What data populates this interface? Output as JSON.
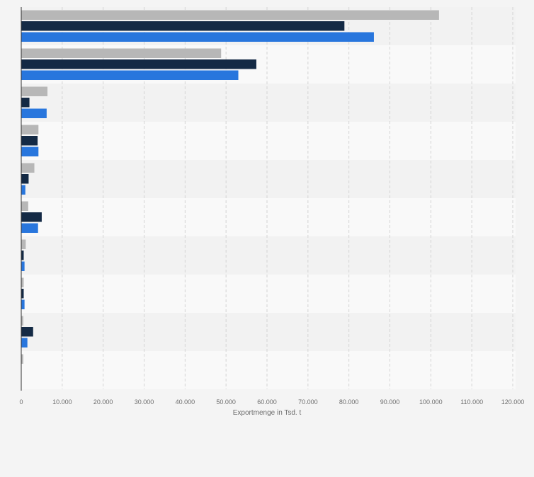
{
  "chart_data": {
    "type": "bar",
    "orientation": "horizontal",
    "categories": [
      "",
      "",
      "",
      "",
      "",
      "",
      "",
      "",
      "",
      ""
    ],
    "series": [
      {
        "color": "#b7b7b7",
        "values": [
          102000,
          48800,
          6400,
          4200,
          3200,
          1700,
          1100,
          600,
          500,
          500
        ]
      },
      {
        "color": "#142a45",
        "values": [
          78900,
          57400,
          2000,
          4000,
          1800,
          5000,
          600,
          600,
          2900,
          null
        ]
      },
      {
        "color": "#2876dd",
        "values": [
          86100,
          53000,
          6200,
          4200,
          1000,
          4100,
          800,
          800,
          1500,
          null
        ]
      }
    ],
    "xlim": [
      0,
      120000
    ],
    "xticks": [
      0,
      10000,
      20000,
      30000,
      40000,
      50000,
      60000,
      70000,
      80000,
      90000,
      100000,
      110000,
      120000
    ],
    "xtick_labels": [
      "0",
      "10.000",
      "20.000",
      "30.000",
      "40.000",
      "50.000",
      "60.000",
      "70.000",
      "80.000",
      "90.000",
      "100.000",
      "110.000",
      "120.000"
    ],
    "xlabel": "Exportmenge in Tsd. t",
    "ylabel": "",
    "title": "",
    "grid": true,
    "legend": "none"
  }
}
